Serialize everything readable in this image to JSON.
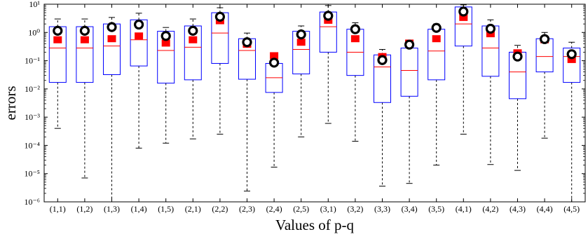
{
  "chart_data": {
    "type": "boxplot",
    "title": "",
    "xlabel": "Values of p-q",
    "ylabel": "errors",
    "yscale": "log",
    "ylim": [
      1e-06,
      10
    ],
    "ytick_labels": [
      "10⁻⁶",
      "10⁻⁵",
      "10⁻⁴",
      "10⁻³",
      "10⁻²",
      "10⁻¹",
      "10⁰",
      "10¹"
    ],
    "ytick_values": [
      1e-06,
      1e-05,
      0.0001,
      0.001,
      0.01,
      0.1,
      1,
      10
    ],
    "grid": false,
    "legend": "none",
    "colors": {
      "box": "#0000ff",
      "median": "#ff0000",
      "whisker": "#000000",
      "mean_marker": "#ff0000",
      "circle_marker": "#000000"
    },
    "categories": [
      "(1,1)",
      "(1,2)",
      "(1,3)",
      "(1,4)",
      "(1,5)",
      "(2,1)",
      "(2,2)",
      "(2,3)",
      "(2,4)",
      "(2,5)",
      "(3,1)",
      "(3,2)",
      "(3,3)",
      "(3,4)",
      "(3,5)",
      "(4,1)",
      "(4,2)",
      "(4,3)",
      "(4,4)",
      "(4,5)"
    ],
    "boxes": [
      {
        "whisker_low": 0.0004,
        "q1": 0.017,
        "median": 0.28,
        "q3": 1.6,
        "whisker_high": 3.0,
        "square": 0.55,
        "circle": 1.15
      },
      {
        "whisker_low": 7e-06,
        "q1": 0.017,
        "median": 0.28,
        "q3": 1.6,
        "whisker_high": 3.0,
        "square": 0.55,
        "circle": 1.15
      },
      {
        "whisker_low": 1e-06,
        "q1": 0.032,
        "median": 0.33,
        "q3": 2.0,
        "whisker_high": 3.4,
        "square": 0.6,
        "circle": 1.55
      },
      {
        "whisker_low": 8e-05,
        "q1": 0.065,
        "median": 0.55,
        "q3": 2.8,
        "whisker_high": 4.8,
        "square": 0.75,
        "circle": 1.9
      },
      {
        "whisker_low": 0.00012,
        "q1": 0.016,
        "median": 0.23,
        "q3": 1.1,
        "whisker_high": 1.5,
        "square": 0.42,
        "circle": 0.75
      },
      {
        "whisker_low": 0.00017,
        "q1": 0.021,
        "median": 0.3,
        "q3": 1.7,
        "whisker_high": 3.0,
        "square": 0.55,
        "circle": 1.15
      },
      {
        "whisker_low": 0.00025,
        "q1": 0.08,
        "median": 0.95,
        "q3": 5.0,
        "whisker_high": 7.5,
        "square": 2.6,
        "circle": 3.6
      },
      {
        "whisker_low": 2.4e-06,
        "q1": 0.022,
        "median": 0.23,
        "q3": 0.6,
        "whisker_high": 0.95,
        "square": 0.38,
        "circle": 0.45
      },
      {
        "whisker_low": 1.7e-05,
        "q1": 0.0075,
        "median": 0.025,
        "q3": 0.08,
        "whisker_high": 0.08,
        "square": 0.15,
        "circle": 0.085
      },
      {
        "whisker_low": 0.0002,
        "q1": 0.034,
        "median": 0.25,
        "q3": 1.1,
        "whisker_high": 1.7,
        "square": 0.45,
        "circle": 0.85
      },
      {
        "whisker_low": 0.0006,
        "q1": 0.2,
        "median": 1.6,
        "q3": 5.3,
        "whisker_high": 9.0,
        "square": 2.7,
        "circle": 3.9
      },
      {
        "whisker_low": 0.00014,
        "q1": 0.03,
        "median": 0.2,
        "q3": 1.3,
        "whisker_high": 2.2,
        "square": 0.6,
        "circle": 1.3
      },
      {
        "whisker_low": 3.6e-06,
        "q1": 0.0033,
        "median": 0.06,
        "q3": 0.16,
        "whisker_high": 0.25,
        "square": 0.14,
        "circle": 0.105
      },
      {
        "whisker_low": 4.5e-06,
        "q1": 0.0055,
        "median": 0.045,
        "q3": 0.28,
        "whisker_high": 0.45,
        "square": 0.42,
        "circle": 0.37
      },
      {
        "whisker_low": 2e-05,
        "q1": 0.021,
        "median": 0.22,
        "q3": 1.3,
        "whisker_high": 2.0,
        "square": 0.6,
        "circle": 1.45
      },
      {
        "whisker_low": 0.00025,
        "q1": 0.33,
        "median": 2.0,
        "q3": 8.0,
        "whisker_high": 9.5,
        "square": 3.4,
        "circle": 5.5
      },
      {
        "whisker_low": 2.1e-05,
        "q1": 0.028,
        "median": 0.28,
        "q3": 1.7,
        "whisker_high": 2.8,
        "square": 0.9,
        "circle": 1.35
      },
      {
        "whisker_low": 1.3e-05,
        "q1": 0.0045,
        "median": 0.04,
        "q3": 0.2,
        "whisker_high": 0.35,
        "square": 0.19,
        "circle": 0.14
      },
      {
        "whisker_low": 0.00018,
        "q1": 0.04,
        "median": 0.14,
        "q3": 0.6,
        "whisker_high": 1.0,
        "square": 0.55,
        "circle": 0.58
      },
      {
        "whisker_low": 1e-06,
        "q1": 0.017,
        "median": 0.14,
        "q3": 0.28,
        "whisker_high": 0.45,
        "square": 0.11,
        "circle": 0.17
      }
    ]
  }
}
